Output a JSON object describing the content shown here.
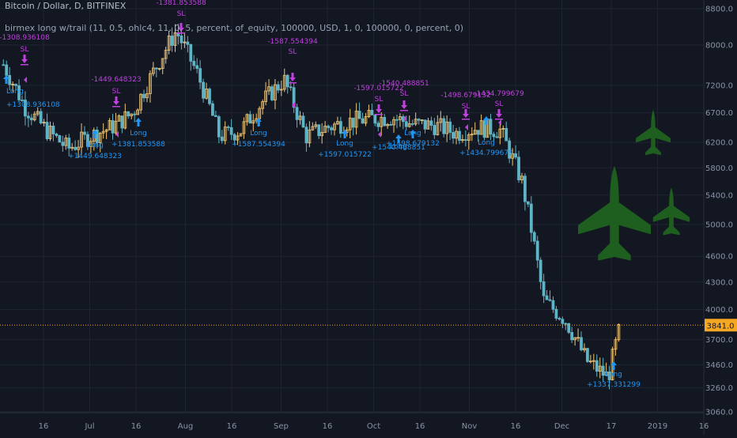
{
  "header": {
    "symbol": "Bitcoin / Dollar, D, BITFINEX",
    "strategy": "birmex long w/trail (11, 0.5, ohlc4, 11, 0, 5, percent, of_equity, 100000, USD, 1, 0, 100000, 0, percent, 0)"
  },
  "colors": {
    "background": "#131722",
    "grid": "#1f2433",
    "axis_text": "#8a93a6",
    "up_candle": "#f0c674",
    "down_candle": "#5fb3c4",
    "long_marker": "#2196f3",
    "exit_marker": "#c040e0",
    "price_line": "#f5a623",
    "jets": "#1e5e1e"
  },
  "chart_data": {
    "type": "candlestick",
    "y_axis": {
      "ticks": [
        3060,
        3260,
        3460,
        3700,
        4000,
        4300,
        4600,
        5000,
        5400,
        5800,
        6200,
        6700,
        7200,
        8000,
        8800
      ],
      "tick_labels": [
        "3060.0",
        "3260.0",
        "3460.0",
        "3700.0",
        "4000.0",
        "4300.0",
        "4600.0",
        "5000.0",
        "5400.0",
        "5800.0",
        "6200.0",
        "6700.0",
        "7200.0",
        "8000.0",
        "8800.0"
      ],
      "scale": "log",
      "range": [
        3000,
        9000
      ]
    },
    "x_axis": {
      "tick_labels": [
        "16",
        "Jul",
        "16",
        "Aug",
        "16",
        "Sep",
        "16",
        "Oct",
        "16",
        "Nov",
        "16",
        "Dec",
        "17",
        "2019",
        "16"
      ]
    },
    "current_price": {
      "value": 3841.0,
      "label": "3841.0"
    },
    "close_path": [
      [
        "2018-06-03",
        7600
      ],
      [
        "2018-06-10",
        6800
      ],
      [
        "2018-06-17",
        6400
      ],
      [
        "2018-06-24",
        6100
      ],
      [
        "2018-07-01",
        6300
      ],
      [
        "2018-07-08",
        6450
      ],
      [
        "2018-07-15",
        6700
      ],
      [
        "2018-07-22",
        7500
      ],
      [
        "2018-07-29",
        8300
      ],
      [
        "2018-08-05",
        7400
      ],
      [
        "2018-08-12",
        6300
      ],
      [
        "2018-08-19",
        6400
      ],
      [
        "2018-08-26",
        6900
      ],
      [
        "2018-09-02",
        7300
      ],
      [
        "2018-09-09",
        6300
      ],
      [
        "2018-09-16",
        6450
      ],
      [
        "2018-09-23",
        6550
      ],
      [
        "2018-09-30",
        6600
      ],
      [
        "2018-10-07",
        6620
      ],
      [
        "2018-10-14",
        6500
      ],
      [
        "2018-10-21",
        6480
      ],
      [
        "2018-10-28",
        6350
      ],
      [
        "2018-11-04",
        6450
      ],
      [
        "2018-11-11",
        6400
      ],
      [
        "2018-11-18",
        5600
      ],
      [
        "2018-11-25",
        4100
      ],
      [
        "2018-12-02",
        3900
      ],
      [
        "2018-12-09",
        3500
      ],
      [
        "2018-12-16",
        3350
      ],
      [
        "2018-12-20",
        3841
      ]
    ],
    "trades": [
      {
        "type": "long",
        "label": "Long",
        "pnl": "+1308.936108"
      },
      {
        "type": "sl",
        "label": "SL",
        "pnl": "-1308.936108"
      },
      {
        "type": "long",
        "label": "Long",
        "pnl": "+1449.648323"
      },
      {
        "type": "sl",
        "label": "SL",
        "pnl": "-1449.648323"
      },
      {
        "type": "long",
        "label": "Long",
        "pnl": "+1381.853588"
      },
      {
        "type": "sl",
        "label": "SL",
        "pnl": "-1381.853588"
      },
      {
        "type": "long",
        "label": "Long",
        "pnl": "+1587.554394"
      },
      {
        "type": "sl",
        "label": "SL",
        "pnl": "-1587.554394"
      },
      {
        "type": "long",
        "label": "Long",
        "pnl": "+1597.015722"
      },
      {
        "type": "sl",
        "label": "SL",
        "pnl": "-1597.015722"
      },
      {
        "type": "long",
        "label": "Long",
        "pnl": "+1540.488851"
      },
      {
        "type": "sl",
        "label": "SL",
        "pnl": "-1540.488851"
      },
      {
        "type": "long",
        "label": "Long",
        "pnl": "+1498.679132"
      },
      {
        "type": "sl",
        "label": "SL",
        "pnl": "-1498.679132"
      },
      {
        "type": "long",
        "label": "Long",
        "pnl": "+1434.799679"
      },
      {
        "type": "sl",
        "label": "SL",
        "pnl": "-1434.799679"
      },
      {
        "type": "long",
        "label": "Long",
        "pnl": "+1337.331299"
      }
    ]
  }
}
